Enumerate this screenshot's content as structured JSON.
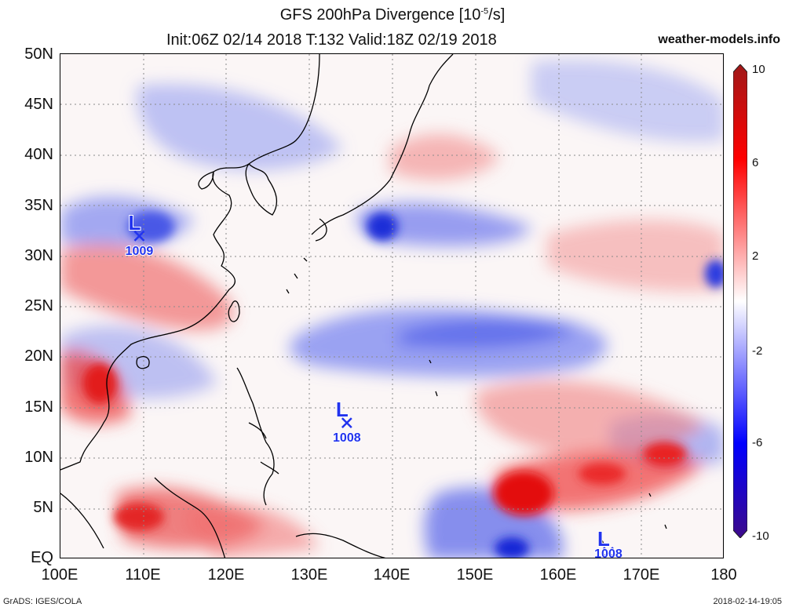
{
  "header": {
    "title_prefix": "GFS 200hPa Divergence [10",
    "title_exp": "-5",
    "title_suffix": "/s]",
    "subtitle": "Init:06Z 02/14 2018 T:132 Valid:18Z 02/19 2018",
    "site": "weather-models.info"
  },
  "axes": {
    "lat_labels": [
      "50N",
      "45N",
      "40N",
      "35N",
      "30N",
      "25N",
      "20N",
      "15N",
      "10N",
      "5N",
      "EQ"
    ],
    "lon_labels": [
      "100E",
      "110E",
      "120E",
      "130E",
      "140E",
      "150E",
      "160E",
      "170E",
      "180"
    ],
    "lat_range": [
      0,
      50
    ],
    "lon_range": [
      100,
      180
    ],
    "grid": "dotted"
  },
  "colorbar": {
    "labels": [
      "10",
      "6",
      "2",
      "-2",
      "-6",
      "-10"
    ],
    "values": [
      10,
      6,
      2,
      -2,
      -6,
      -10
    ],
    "colors": {
      "max": "#a01818",
      "pos": "#ff0000",
      "neutral": "#ffffff",
      "neg": "#0000ff",
      "min": "#3d0a8a"
    }
  },
  "lows": [
    {
      "letter": "L",
      "pressure": "1009",
      "lon": 109.5,
      "lat": 32.0
    },
    {
      "letter": "L",
      "pressure": "1008",
      "lon": 134.5,
      "lat": 13.5
    },
    {
      "letter": "L",
      "pressure": "1008",
      "lon": 166.0,
      "lat": 0.7
    }
  ],
  "footer": {
    "left": "GrADS: IGES/COLA",
    "right": "2018-02-14-19:05"
  },
  "colors": {
    "low_marker": "#2233ee",
    "coast": "#000000",
    "grid": "#888888"
  }
}
